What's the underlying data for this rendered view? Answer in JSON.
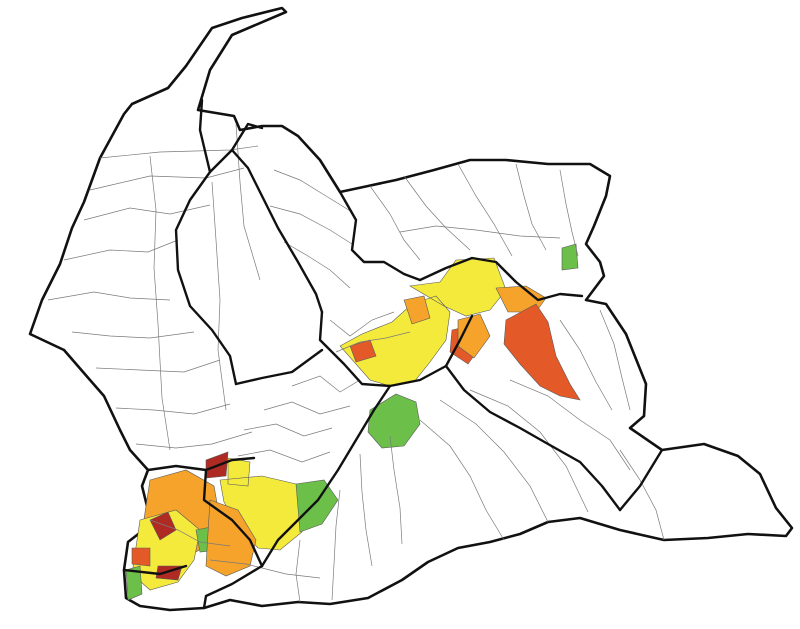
{
  "legend_colors": {
    "green": "#6cc04a",
    "yellow": "#f4ea3c",
    "orange": "#f5a32a",
    "dark_orange": "#e35a28",
    "red": "#b02a24",
    "none": "#ffffff",
    "boundary": "#111111",
    "subdivision": "#7a7a7a"
  },
  "regions": [
    {
      "id": "west-cluster-a",
      "category": "orange"
    },
    {
      "id": "west-cluster-b",
      "category": "yellow"
    },
    {
      "id": "west-cluster-c",
      "category": "red"
    },
    {
      "id": "west-cluster-d",
      "category": "green"
    },
    {
      "id": "west-cluster-e",
      "category": "dark_orange"
    },
    {
      "id": "south-central-a",
      "category": "yellow"
    },
    {
      "id": "south-central-b",
      "category": "green"
    },
    {
      "id": "south-central-c",
      "category": "orange"
    },
    {
      "id": "central-green",
      "category": "green"
    },
    {
      "id": "north-central-a",
      "category": "yellow"
    },
    {
      "id": "north-central-b",
      "category": "orange"
    },
    {
      "id": "north-central-c",
      "category": "dark_orange"
    },
    {
      "id": "east-a",
      "category": "dark_orange"
    },
    {
      "id": "east-b",
      "category": "orange"
    },
    {
      "id": "east-c",
      "category": "green"
    }
  ]
}
